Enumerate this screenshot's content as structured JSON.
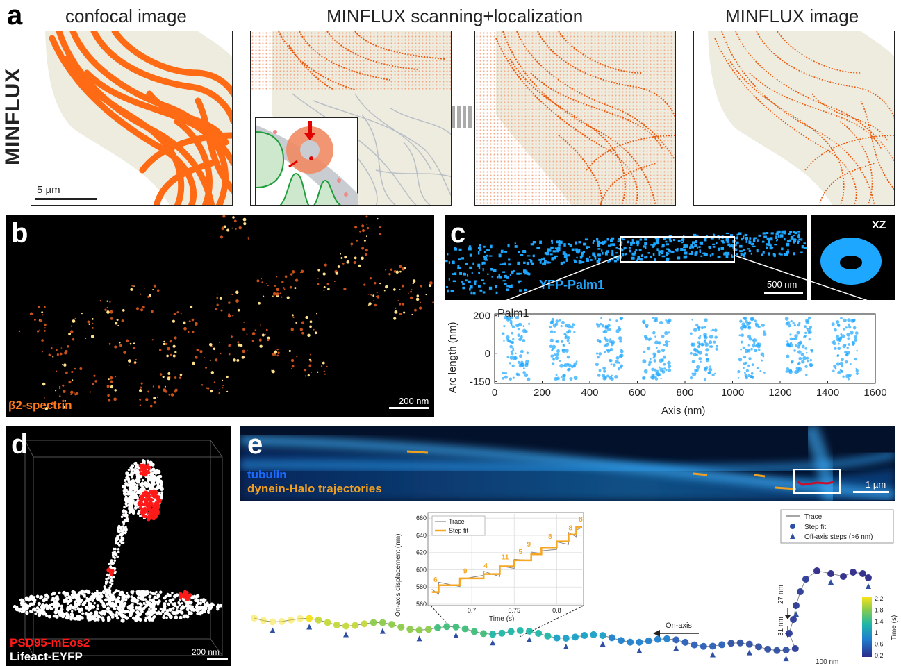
{
  "panel_a": {
    "letter": "a",
    "row_label": "MINFLUX",
    "title_confocal": "confocal image",
    "title_scanning": "MINFLUX scanning+localization",
    "title_image": "MINFLUX image",
    "scale_label": "5 µm",
    "colors": {
      "fiber": "#ff6a14",
      "cell": "#eeecdf",
      "grid": "#f5a783",
      "gray_fiber": "#b9bfc6",
      "green": "#1e9e3b"
    }
  },
  "panel_b": {
    "letter": "b",
    "label": "β2-spectrin",
    "scale_label": "200 nm",
    "colors": {
      "label": "#ff7a1a",
      "spot": "#ffb347"
    }
  },
  "panel_c": {
    "letter": "c",
    "label": "YFP-Palm1",
    "inset_label": "XZ",
    "scale_label": "500 nm",
    "plot_title": "Palm1",
    "colors": {
      "points": "#1ea7ff"
    }
  },
  "panel_d": {
    "letter": "d",
    "label_red": "PSD95-mEos2",
    "label_white": "Lifeact-EYFP",
    "scale_label": "200 nm",
    "colors": {
      "red": "#ff1a1a",
      "white": "#ffffff"
    }
  },
  "panel_e": {
    "letter": "e",
    "label_tubulin": "tubulin",
    "label_dynein": "dynein-Halo trajectories",
    "scale_label_image": "1 µm",
    "scale_label_trace": "100 nm",
    "arrow_label": "On-axis",
    "marker_27": "27 nm",
    "marker_31": "31 nm",
    "legend": [
      "Trace",
      "Step fit",
      "Off-axis steps (>6 nm)"
    ],
    "colorbar_label": "Time (s)",
    "colorbar_ticks": [
      "2.2",
      "1.8",
      "1.4",
      "1",
      "0.6",
      "0.2"
    ],
    "inset_legend": [
      "Trace",
      "Step fit"
    ],
    "step_labels": [
      "6",
      "9",
      "4",
      "11",
      "5",
      "9",
      "8",
      "8",
      "8"
    ],
    "colors": {
      "tubulin_label": "#1a6cff",
      "dynein_label": "#f0a020",
      "step": "#f5a623",
      "trace": "#888888",
      "dot": "#2e4fa3"
    }
  },
  "chart_data": {
    "type": "line",
    "title": "",
    "xlabel": "Time (s)",
    "ylabel": "On-axis displacement (nm)",
    "xlim": [
      0.65,
      0.83
    ],
    "ylim": [
      560,
      665
    ],
    "x_ticks": [
      "0.7",
      "0.75",
      "0.8"
    ],
    "y_ticks": [
      "660",
      "640",
      "620",
      "600",
      "580",
      "560"
    ],
    "series": [
      {
        "name": "Step fit",
        "x": [
          0.653,
          0.661,
          0.661,
          0.686,
          0.686,
          0.714,
          0.714,
          0.733,
          0.733,
          0.75,
          0.75,
          0.77,
          0.77,
          0.782,
          0.782,
          0.8,
          0.8,
          0.814,
          0.814,
          0.823,
          0.823,
          0.83
        ],
        "values": [
          574,
          574,
          582,
          582,
          590,
          590,
          595,
          595,
          604,
          604,
          611,
          611,
          618,
          618,
          626,
          626,
          633,
          633,
          641,
          641,
          650,
          650
        ]
      }
    ],
    "arc_plot": {
      "type": "scatter",
      "title": "Palm1",
      "xlabel": "Axis (nm)",
      "ylabel": "Arc length (nm)",
      "x_ticks": [
        "0",
        "200",
        "400",
        "600",
        "800",
        "1000",
        "1200",
        "1400",
        "1600"
      ],
      "y_ticks": [
        "200",
        "0",
        "-150"
      ],
      "xlim": [
        0,
        1600
      ],
      "ylim": [
        -160,
        210
      ],
      "ring_centers_nm": [
        90,
        290,
        480,
        680,
        880,
        1080,
        1280,
        1470
      ]
    }
  }
}
